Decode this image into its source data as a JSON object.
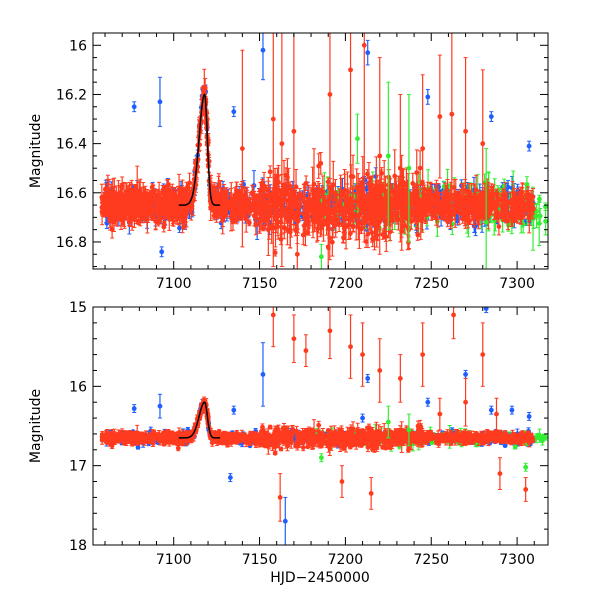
{
  "chart_data": [
    {
      "type": "scatter",
      "panel": "top",
      "ylabel": "Magnitude",
      "xlabel": "",
      "xlim": [
        7053,
        7318
      ],
      "ylim": [
        16.91,
        15.95
      ],
      "y_inverted": true,
      "xticks": [
        7100,
        7150,
        7200,
        7250,
        7300
      ],
      "yticks": [
        16,
        16.2,
        16.4,
        16.6,
        16.8
      ],
      "ytick_labels": [
        "16",
        "16.2",
        "16.4",
        "16.6",
        "16.8"
      ],
      "series": [
        {
          "name": "red",
          "color": "#ff3b1f"
        },
        {
          "name": "blue",
          "color": "#1f5fff"
        },
        {
          "name": "green",
          "color": "#33ee33"
        },
        {
          "name": "model",
          "color": "#000000"
        }
      ],
      "baseline": 16.65,
      "flare": {
        "t_peak": 7118,
        "peak_mag": 16.2,
        "t_start": 7107,
        "t_end": 7124
      },
      "outliers": [
        {
          "series": "blue",
          "x": 7077,
          "y": 16.25,
          "err": 0.02
        },
        {
          "series": "blue",
          "x": 7092,
          "y": 16.23,
          "err": 0.1
        },
        {
          "series": "blue",
          "x": 7135,
          "y": 16.27,
          "err": 0.02
        },
        {
          "series": "blue",
          "x": 7152,
          "y": 16.02,
          "err": 0.12
        },
        {
          "series": "blue",
          "x": 7213,
          "y": 16.03,
          "err": 0.05
        },
        {
          "series": "blue",
          "x": 7248,
          "y": 16.21,
          "err": 0.03
        },
        {
          "series": "blue",
          "x": 7285,
          "y": 16.29,
          "err": 0.02
        },
        {
          "series": "blue",
          "x": 7307,
          "y": 16.41,
          "err": 0.02
        },
        {
          "series": "blue",
          "x": 7093,
          "y": 16.84,
          "err": 0.02
        },
        {
          "series": "red",
          "x": 7140,
          "y": 16.42,
          "err": 0.4
        },
        {
          "series": "red",
          "x": 7158,
          "y": 16.3,
          "err": 0.6
        },
        {
          "series": "red",
          "x": 7163,
          "y": 16.4,
          "err": 0.5
        },
        {
          "series": "red",
          "x": 7170,
          "y": 16.35,
          "err": 0.4
        },
        {
          "series": "red",
          "x": 7191,
          "y": 16.2,
          "err": 0.5
        },
        {
          "series": "red",
          "x": 7203,
          "y": 16.1,
          "err": 0.6
        },
        {
          "series": "red",
          "x": 7211,
          "y": 16.0,
          "err": 0.8
        },
        {
          "series": "red",
          "x": 7220,
          "y": 16.45,
          "err": 0.4
        },
        {
          "series": "red",
          "x": 7232,
          "y": 16.5,
          "err": 0.3
        },
        {
          "series": "red",
          "x": 7245,
          "y": 16.42,
          "err": 0.3
        },
        {
          "series": "red",
          "x": 7255,
          "y": 16.29,
          "err": 0.25
        },
        {
          "series": "red",
          "x": 7262,
          "y": 16.28,
          "err": 0.35
        },
        {
          "series": "red",
          "x": 7270,
          "y": 16.35,
          "err": 0.3
        },
        {
          "series": "red",
          "x": 7280,
          "y": 16.4,
          "err": 0.3
        },
        {
          "series": "red",
          "x": 7172,
          "y": 16.85,
          "err": 0.1
        },
        {
          "series": "red",
          "x": 7190,
          "y": 16.82,
          "err": 0.1
        },
        {
          "series": "green",
          "x": 7186,
          "y": 16.86,
          "err": 0.05
        },
        {
          "series": "green",
          "x": 7225,
          "y": 16.45,
          "err": 0.3
        },
        {
          "series": "green",
          "x": 7237,
          "y": 16.5,
          "err": 0.3
        },
        {
          "series": "green",
          "x": 7282,
          "y": 16.72,
          "err": 0.3
        },
        {
          "series": "green",
          "x": 7207,
          "y": 16.38,
          "err": 0.1
        }
      ]
    },
    {
      "type": "scatter",
      "panel": "bottom",
      "ylabel": "Magnitude",
      "xlabel": "HJD−2450000",
      "xlim": [
        7053,
        7318
      ],
      "ylim": [
        18,
        15
      ],
      "y_inverted": true,
      "xticks": [
        7100,
        7150,
        7200,
        7250,
        7300
      ],
      "yticks": [
        15,
        16,
        17,
        18
      ],
      "ytick_labels": [
        "15",
        "16",
        "17",
        "18"
      ],
      "series": [
        {
          "name": "red",
          "color": "#ff3b1f"
        },
        {
          "name": "blue",
          "color": "#1f5fff"
        },
        {
          "name": "green",
          "color": "#33ee33"
        },
        {
          "name": "model",
          "color": "#000000"
        }
      ],
      "baseline": 16.65,
      "flare": {
        "t_peak": 7118,
        "peak_mag": 16.2,
        "t_start": 7107,
        "t_end": 7124
      },
      "outliers": [
        {
          "series": "blue",
          "x": 7077,
          "y": 16.28,
          "err": 0.05
        },
        {
          "series": "blue",
          "x": 7092,
          "y": 16.25,
          "err": 0.15
        },
        {
          "series": "blue",
          "x": 7135,
          "y": 16.3,
          "err": 0.05
        },
        {
          "series": "blue",
          "x": 7152,
          "y": 15.85,
          "err": 0.4
        },
        {
          "series": "blue",
          "x": 7165,
          "y": 17.7,
          "err": 0.3
        },
        {
          "series": "blue",
          "x": 7210,
          "y": 16.4,
          "err": 0.05
        },
        {
          "series": "blue",
          "x": 7213,
          "y": 15.9,
          "err": 0.05
        },
        {
          "series": "blue",
          "x": 7248,
          "y": 16.2,
          "err": 0.05
        },
        {
          "series": "blue",
          "x": 7270,
          "y": 15.85,
          "err": 0.05
        },
        {
          "series": "blue",
          "x": 7282,
          "y": 15.02,
          "err": 0.05
        },
        {
          "series": "blue",
          "x": 7285,
          "y": 16.3,
          "err": 0.05
        },
        {
          "series": "blue",
          "x": 7297,
          "y": 16.3,
          "err": 0.05
        },
        {
          "series": "blue",
          "x": 7307,
          "y": 16.38,
          "err": 0.05
        },
        {
          "series": "blue",
          "x": 7133,
          "y": 17.15,
          "err": 0.05
        },
        {
          "series": "red",
          "x": 7158,
          "y": 15.1,
          "err": 0.4
        },
        {
          "series": "red",
          "x": 7170,
          "y": 15.4,
          "err": 0.3
        },
        {
          "series": "red",
          "x": 7177,
          "y": 15.55,
          "err": 0.2
        },
        {
          "series": "red",
          "x": 7191,
          "y": 15.3,
          "err": 0.35
        },
        {
          "series": "red",
          "x": 7203,
          "y": 15.5,
          "err": 0.4
        },
        {
          "series": "red",
          "x": 7210,
          "y": 15.6,
          "err": 0.4
        },
        {
          "series": "red",
          "x": 7220,
          "y": 15.8,
          "err": 0.4
        },
        {
          "series": "red",
          "x": 7232,
          "y": 15.9,
          "err": 0.3
        },
        {
          "series": "red",
          "x": 7245,
          "y": 15.6,
          "err": 0.4
        },
        {
          "series": "red",
          "x": 7255,
          "y": 16.35,
          "err": 0.2
        },
        {
          "series": "red",
          "x": 7263,
          "y": 15.1,
          "err": 0.3
        },
        {
          "series": "red",
          "x": 7270,
          "y": 16.2,
          "err": 0.3
        },
        {
          "series": "red",
          "x": 7280,
          "y": 15.6,
          "err": 0.4
        },
        {
          "series": "red",
          "x": 7288,
          "y": 16.35,
          "err": 0.2
        },
        {
          "series": "red",
          "x": 7290,
          "y": 17.1,
          "err": 0.2
        },
        {
          "series": "red",
          "x": 7305,
          "y": 17.3,
          "err": 0.15
        },
        {
          "series": "red",
          "x": 7198,
          "y": 17.2,
          "err": 0.2
        },
        {
          "series": "red",
          "x": 7215,
          "y": 17.35,
          "err": 0.2
        },
        {
          "series": "red",
          "x": 7162,
          "y": 17.4,
          "err": 0.3
        },
        {
          "series": "green",
          "x": 7186,
          "y": 16.9,
          "err": 0.05
        },
        {
          "series": "green",
          "x": 7225,
          "y": 16.45,
          "err": 0.2
        },
        {
          "series": "green",
          "x": 7237,
          "y": 16.55,
          "err": 0.2
        },
        {
          "series": "green",
          "x": 7305,
          "y": 17.02,
          "err": 0.05
        }
      ]
    }
  ]
}
